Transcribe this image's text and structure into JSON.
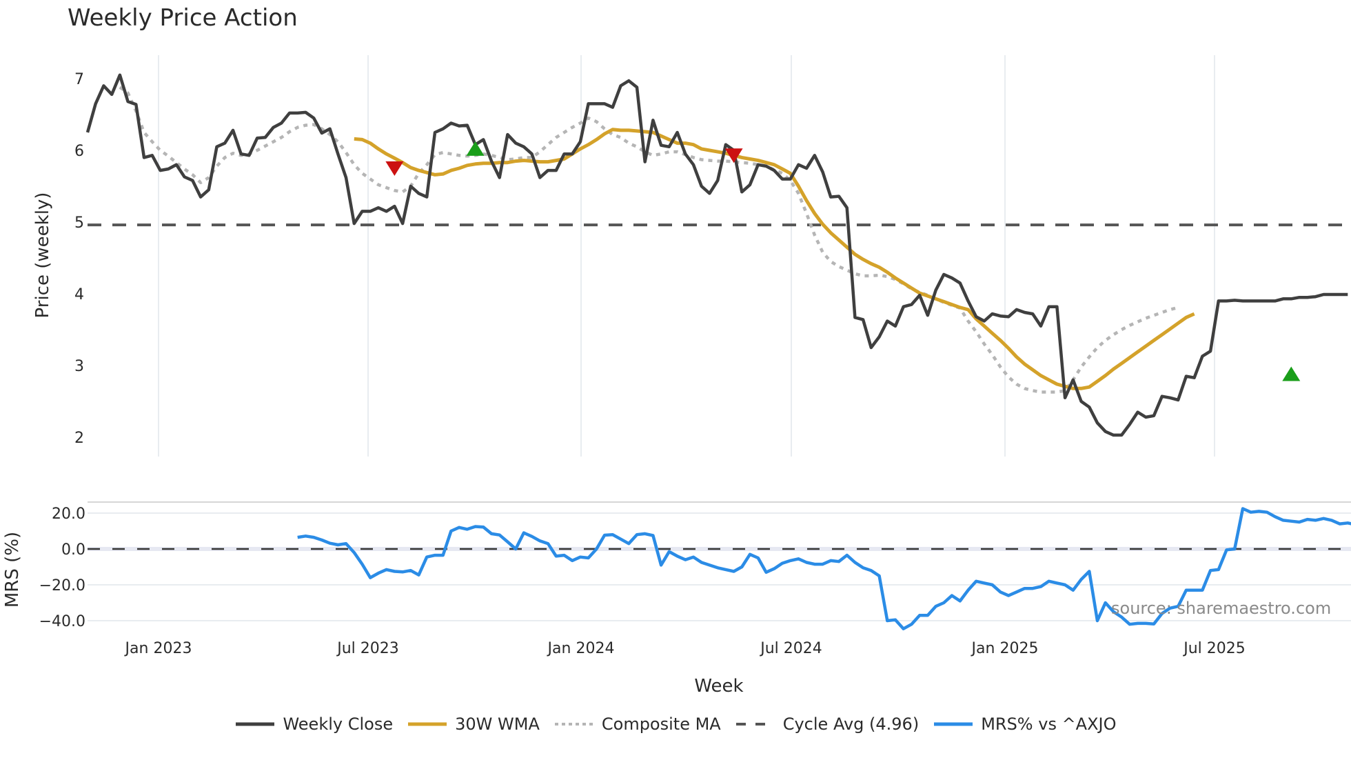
{
  "title": "Weekly Price Action",
  "source_text": "source: sharemaestro.com",
  "legend": [
    {
      "label": "Weekly Close",
      "color": "#3f3f3f",
      "style": "solid"
    },
    {
      "label": "30W WMA",
      "color": "#d4a22a",
      "style": "solid"
    },
    {
      "label": "Composite MA",
      "color": "#b5b5b5",
      "style": "dotted"
    },
    {
      "label": "Cycle Avg (4.96)",
      "color": "#555555",
      "style": "dashed"
    },
    {
      "label": "MRS% vs ^AXJO",
      "color": "#2b8ce6",
      "style": "solid"
    }
  ],
  "colors": {
    "close": "#3f3f3f",
    "wma": "#d4a22a",
    "composite": "#b5b5b5",
    "cycle": "#555555",
    "mrs": "#2b8ce6",
    "buy": "#1a9e1a",
    "sell": "#cc1111",
    "grid": "#e8ecf0"
  },
  "chart_data": [
    {
      "type": "line",
      "title": "Weekly Price Action",
      "xlabel": "Week",
      "ylabel": "Price (weekly)",
      "ylim": [
        1.8,
        7.4
      ],
      "yticks": [
        2,
        3,
        4,
        5,
        6,
        7
      ],
      "xticks": [
        "Jan 2023",
        "Jul 2023",
        "Jan 2024",
        "Jul 2024",
        "Jan 2025",
        "Jul 2025"
      ],
      "x_start": "2022-11-07",
      "x_step": "1 week",
      "cycle_avg": 4.96,
      "series": [
        {
          "name": "Weekly Close",
          "start_index": 0,
          "values": [
            6.25,
            6.65,
            6.9,
            6.78,
            7.05,
            6.68,
            6.64,
            5.9,
            5.93,
            5.72,
            5.74,
            5.8,
            5.63,
            5.58,
            5.35,
            5.45,
            6.05,
            6.1,
            6.28,
            5.95,
            5.93,
            6.17,
            6.18,
            6.32,
            6.38,
            6.52,
            6.52,
            6.53,
            6.45,
            6.24,
            6.3,
            5.95,
            5.62,
            4.98,
            5.15,
            5.15,
            5.2,
            5.15,
            5.22,
            4.98,
            5.5,
            5.4,
            5.35,
            6.25,
            6.3,
            6.38,
            6.34,
            6.35,
            6.08,
            6.15,
            5.85,
            5.62,
            6.22,
            6.1,
            6.05,
            5.95,
            5.62,
            5.72,
            5.72,
            5.95,
            5.95,
            6.12,
            6.65,
            6.65,
            6.65,
            6.6,
            6.9,
            6.97,
            6.88,
            5.84,
            6.42,
            6.07,
            6.05,
            6.25,
            5.95,
            5.8,
            5.5,
            5.4,
            5.58,
            6.08,
            6.0,
            5.42,
            5.52,
            5.8,
            5.78,
            5.72,
            5.6,
            5.6,
            5.8,
            5.75,
            5.93,
            5.7,
            5.35,
            5.36,
            5.2,
            3.67,
            3.64,
            3.25,
            3.4,
            3.62,
            3.55,
            3.82,
            3.85,
            3.98,
            3.7,
            4.05,
            4.27,
            4.22,
            4.15,
            3.9,
            3.68,
            3.62,
            3.72,
            3.69,
            3.68,
            3.78,
            3.74,
            3.72,
            3.55,
            3.82,
            3.82,
            2.55,
            2.8,
            2.5,
            2.42,
            2.2,
            2.08,
            2.03,
            2.03,
            2.18,
            2.35,
            2.28,
            2.3,
            2.57,
            2.55,
            2.52,
            2.85,
            2.83,
            3.13,
            3.2,
            3.9,
            3.9,
            3.91,
            3.9,
            3.9,
            3.9,
            3.9,
            3.9,
            3.93,
            3.93,
            3.95,
            3.95,
            3.96,
            3.99,
            3.99,
            3.99,
            3.99
          ]
        },
        {
          "name": "30W WMA",
          "start_index": 33,
          "values": [
            6.16,
            6.15,
            6.1,
            6.02,
            5.95,
            5.89,
            5.83,
            5.76,
            5.72,
            5.69,
            5.66,
            5.67,
            5.72,
            5.75,
            5.79,
            5.81,
            5.82,
            5.82,
            5.83,
            5.83,
            5.85,
            5.86,
            5.85,
            5.84,
            5.84,
            5.86,
            5.88,
            5.95,
            6.02,
            6.08,
            6.15,
            6.23,
            6.29,
            6.28,
            6.28,
            6.27,
            6.26,
            6.25,
            6.2,
            6.15,
            6.1,
            6.1,
            6.08,
            6.02,
            6.0,
            5.98,
            5.96,
            5.93,
            5.9,
            5.88,
            5.86,
            5.83,
            5.8,
            5.74,
            5.68,
            5.5,
            5.3,
            5.12,
            4.97,
            4.85,
            4.75,
            4.65,
            4.55,
            4.48,
            4.42,
            4.37,
            4.3,
            4.22,
            4.15,
            4.08,
            4.01,
            3.97,
            3.93,
            3.89,
            3.85,
            3.81,
            3.78,
            3.65,
            3.55,
            3.45,
            3.35,
            3.24,
            3.12,
            3.02,
            2.94,
            2.86,
            2.8,
            2.74,
            2.71,
            2.68,
            2.68,
            2.7,
            2.78,
            2.86,
            2.95,
            3.03,
            3.11,
            3.19,
            3.27,
            3.35,
            3.43,
            3.51,
            3.59,
            3.67,
            3.72
          ]
        },
        {
          "name": "Composite MA",
          "start_index": 4,
          "values": [
            6.88,
            6.8,
            6.55,
            6.25,
            6.12,
            6.0,
            5.92,
            5.83,
            5.74,
            5.66,
            5.55,
            5.62,
            5.78,
            5.9,
            5.96,
            5.93,
            5.95,
            6.0,
            6.06,
            6.12,
            6.18,
            6.26,
            6.32,
            6.35,
            6.36,
            6.3,
            6.22,
            6.12,
            5.97,
            5.8,
            5.68,
            5.6,
            5.52,
            5.48,
            5.44,
            5.42,
            5.5,
            5.68,
            5.8,
            5.94,
            5.97,
            5.95,
            5.93,
            5.92,
            5.93,
            5.95,
            5.93,
            5.9,
            5.87,
            5.88,
            5.9,
            5.9,
            5.98,
            6.08,
            6.18,
            6.25,
            6.32,
            6.38,
            6.45,
            6.4,
            6.3,
            6.22,
            6.18,
            6.1,
            6.05,
            5.98,
            5.93,
            5.95,
            5.98,
            5.98,
            5.94,
            5.9,
            5.87,
            5.86,
            5.85,
            5.85,
            5.84,
            5.83,
            5.82,
            5.8,
            5.78,
            5.73,
            5.68,
            5.58,
            5.4,
            5.12,
            4.82,
            4.58,
            4.45,
            4.38,
            4.33,
            4.28,
            4.25,
            4.25,
            4.26,
            4.24,
            4.2,
            4.14,
            4.07,
            4.02,
            3.98,
            3.93,
            3.88,
            3.84,
            3.8,
            3.62,
            3.47,
            3.3,
            3.15,
            2.98,
            2.84,
            2.74,
            2.68,
            2.65,
            2.63,
            2.63,
            2.63,
            2.65,
            2.8,
            2.98,
            3.12,
            3.25,
            3.35,
            3.43,
            3.5,
            3.56,
            3.61,
            3.66,
            3.7,
            3.74,
            3.78,
            3.81
          ]
        },
        {
          "name": "Cycle Avg (4.96)",
          "constant": 4.96
        }
      ],
      "markers": [
        {
          "type": "sell",
          "week_index": 38,
          "price": 5.75
        },
        {
          "type": "buy",
          "week_index": 48,
          "price": 6.02
        },
        {
          "type": "sell",
          "week_index": 80,
          "price": 5.93
        },
        {
          "type": "buy",
          "week_index": 149,
          "price": 2.88
        }
      ]
    },
    {
      "type": "line",
      "xlabel": "Week",
      "ylabel": "MRS (%)",
      "ylim": [
        -46,
        26
      ],
      "yticks": [
        "20.0",
        "0.0",
        "−20.0",
        "−40.0"
      ],
      "ytick_values": [
        20,
        0,
        -20,
        -40
      ],
      "zero_line": 0,
      "series": [
        {
          "name": "MRS% vs ^AXJO",
          "start_index": 26,
          "values": [
            6.5,
            7.2,
            6.5,
            5,
            3.2,
            2.3,
            3,
            -2,
            -8.5,
            -16,
            -13.5,
            -11.5,
            -12.5,
            -12.8,
            -12,
            -14.5,
            -4.5,
            -3.5,
            -3.5,
            10,
            12,
            11,
            12.5,
            12.2,
            8.5,
            7.8,
            4,
            0,
            9,
            7,
            4.5,
            3,
            -4,
            -3.5,
            -6.5,
            -4.5,
            -5,
            0,
            7.7,
            8,
            5.5,
            3,
            8,
            8.5,
            7.5,
            -9,
            -1.5,
            -4,
            -6,
            -4.5,
            -7.5,
            -9,
            -10.5,
            -11.5,
            -12.5,
            -10,
            -3,
            -5,
            -13,
            -11,
            -8,
            -6.5,
            -5.5,
            -7.5,
            -8.5,
            -8.5,
            -6.5,
            -7,
            -3.5,
            -7.5,
            -10.5,
            -12,
            -15,
            -40,
            -39.5,
            -44.5,
            -42,
            -37,
            -37,
            -32,
            -30,
            -26,
            -29,
            -23,
            -18,
            -19,
            -20,
            -24,
            -26,
            -24,
            -22,
            -22,
            -21,
            -18,
            -19,
            -20,
            -23,
            -17,
            -12.5,
            -40,
            -30,
            -35,
            -38,
            -42,
            -41.5,
            -41.5,
            -41.8,
            -36,
            -33,
            -32,
            -23,
            -23,
            -23,
            -12,
            -11.5,
            -0.5,
            0,
            22.5,
            20.5,
            21,
            20.5,
            18,
            16,
            15.5,
            15,
            16.5,
            16,
            17,
            16,
            14,
            14.5,
            13.5,
            12,
            12.5
          ]
        }
      ]
    }
  ]
}
